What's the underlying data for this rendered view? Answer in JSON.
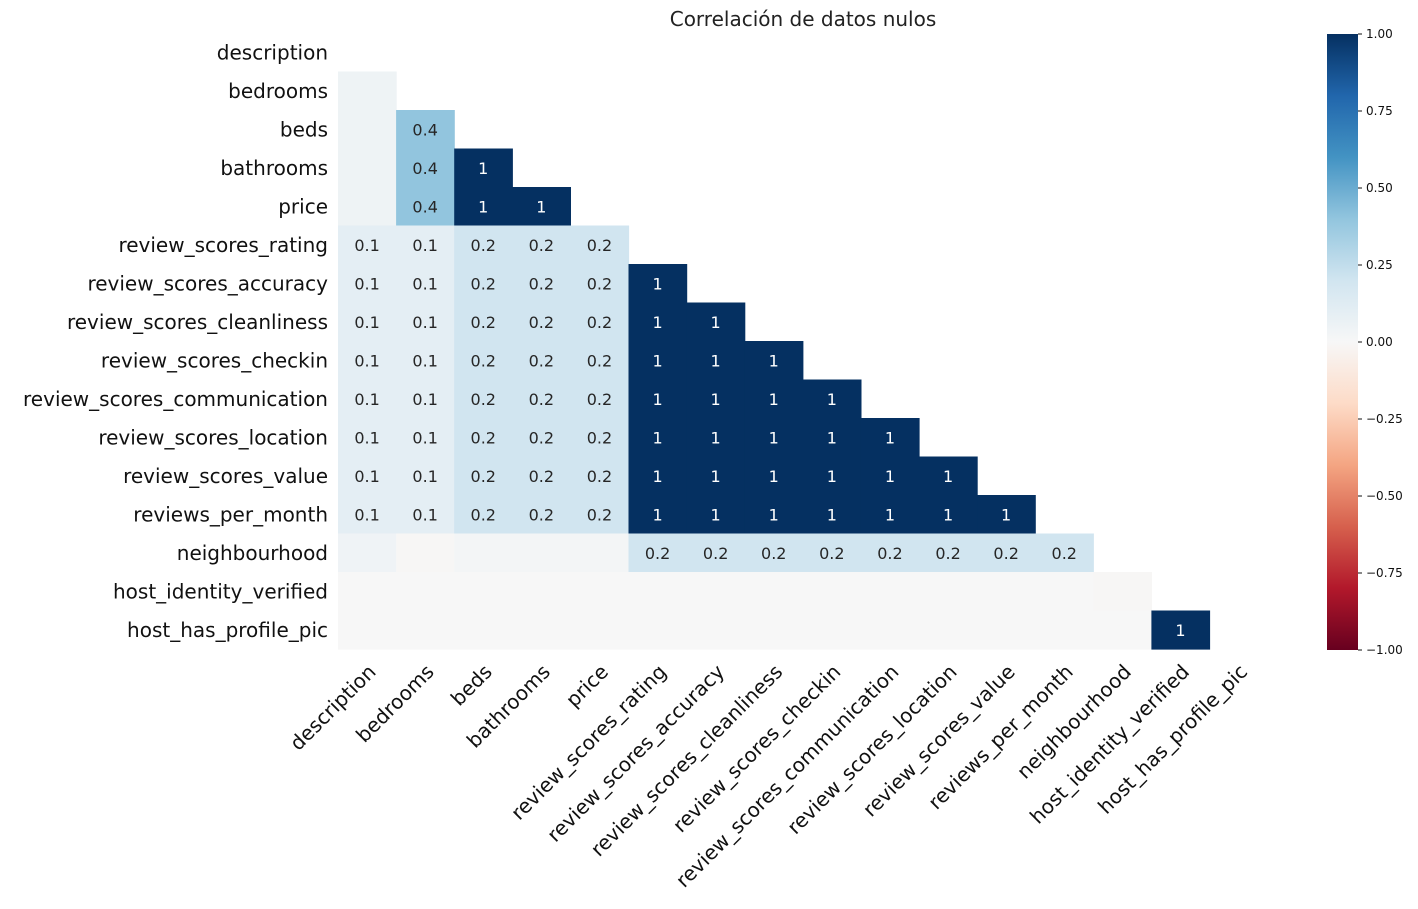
{
  "chart_data": {
    "type": "heatmap",
    "title": "Correlación de datos nulos",
    "labels": [
      "description",
      "bedrooms",
      "beds",
      "bathrooms",
      "price",
      "review_scores_rating",
      "review_scores_accuracy",
      "review_scores_cleanliness",
      "review_scores_checkin",
      "review_scores_communication",
      "review_scores_location",
      "review_scores_value",
      "reviews_per_month",
      "neighbourhood",
      "host_identity_verified",
      "host_has_profile_pic"
    ],
    "lower_triangle": [
      [],
      [
        0.05
      ],
      [
        0.05,
        0.4
      ],
      [
        0.05,
        0.4,
        1
      ],
      [
        0.05,
        0.4,
        1,
        1
      ],
      [
        0.1,
        0.1,
        0.2,
        0.2,
        0.2
      ],
      [
        0.1,
        0.1,
        0.2,
        0.2,
        0.2,
        1
      ],
      [
        0.1,
        0.1,
        0.2,
        0.2,
        0.2,
        1,
        1
      ],
      [
        0.1,
        0.1,
        0.2,
        0.2,
        0.2,
        1,
        1,
        1
      ],
      [
        0.1,
        0.1,
        0.2,
        0.2,
        0.2,
        1,
        1,
        1,
        1
      ],
      [
        0.1,
        0.1,
        0.2,
        0.2,
        0.2,
        1,
        1,
        1,
        1,
        1
      ],
      [
        0.1,
        0.1,
        0.2,
        0.2,
        0.2,
        1,
        1,
        1,
        1,
        1,
        1
      ],
      [
        0.1,
        0.1,
        0.2,
        0.2,
        0.2,
        1,
        1,
        1,
        1,
        1,
        1,
        1
      ],
      [
        0.04,
        -0.01,
        0.02,
        0.02,
        0.02,
        0.2,
        0.2,
        0.2,
        0.2,
        0.2,
        0.2,
        0.2,
        0.2
      ],
      [
        0.0,
        0.0,
        0.0,
        0.0,
        0.0,
        0.0,
        0.0,
        0.0,
        0.0,
        0.0,
        0.0,
        0.0,
        0.0,
        -0.01
      ],
      [
        0.0,
        0.0,
        0.0,
        0.0,
        0.0,
        0.0,
        0.0,
        0.0,
        0.0,
        0.0,
        0.0,
        0.0,
        0.0,
        0.0,
        1
      ]
    ],
    "display_rule": "values with |v| < 0.1 are shown as color only, without a label",
    "colorbar": {
      "min": -1,
      "max": 1,
      "ticks": [
        "1.00",
        "0.75",
        "0.50",
        "0.25",
        "0.00",
        "−0.25",
        "−0.50",
        "−0.75",
        "−1.00"
      ],
      "colormap": "RdBu"
    },
    "grid": false,
    "legend": "colorbar-right"
  }
}
